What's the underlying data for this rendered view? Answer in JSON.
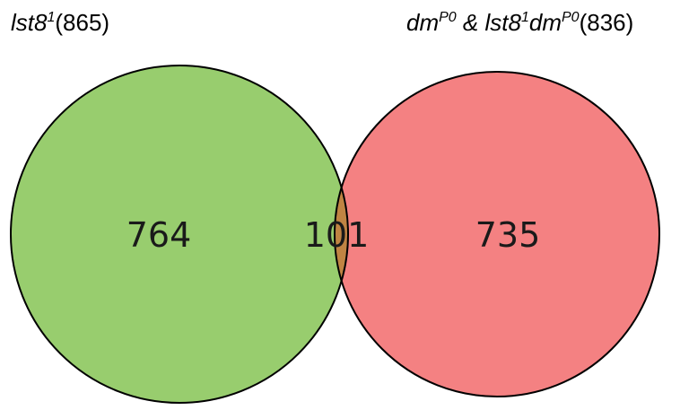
{
  "sets": [
    {
      "name_base": "lst8",
      "name_sup": "1",
      "total": "(865)",
      "color": "#98cd6e"
    },
    {
      "name_prefix_base": "dm",
      "name_prefix_sup": "P0",
      "connector": " & ",
      "name_base": "lst8",
      "name_sup": "1",
      "name_suffix_base": "dm",
      "name_suffix_sup": "P0",
      "total": "(836)",
      "color": "#f48182"
    }
  ],
  "regions": {
    "left_only": "764",
    "intersection": "101",
    "right_only": "735",
    "intersection_color": "#c08443"
  }
}
